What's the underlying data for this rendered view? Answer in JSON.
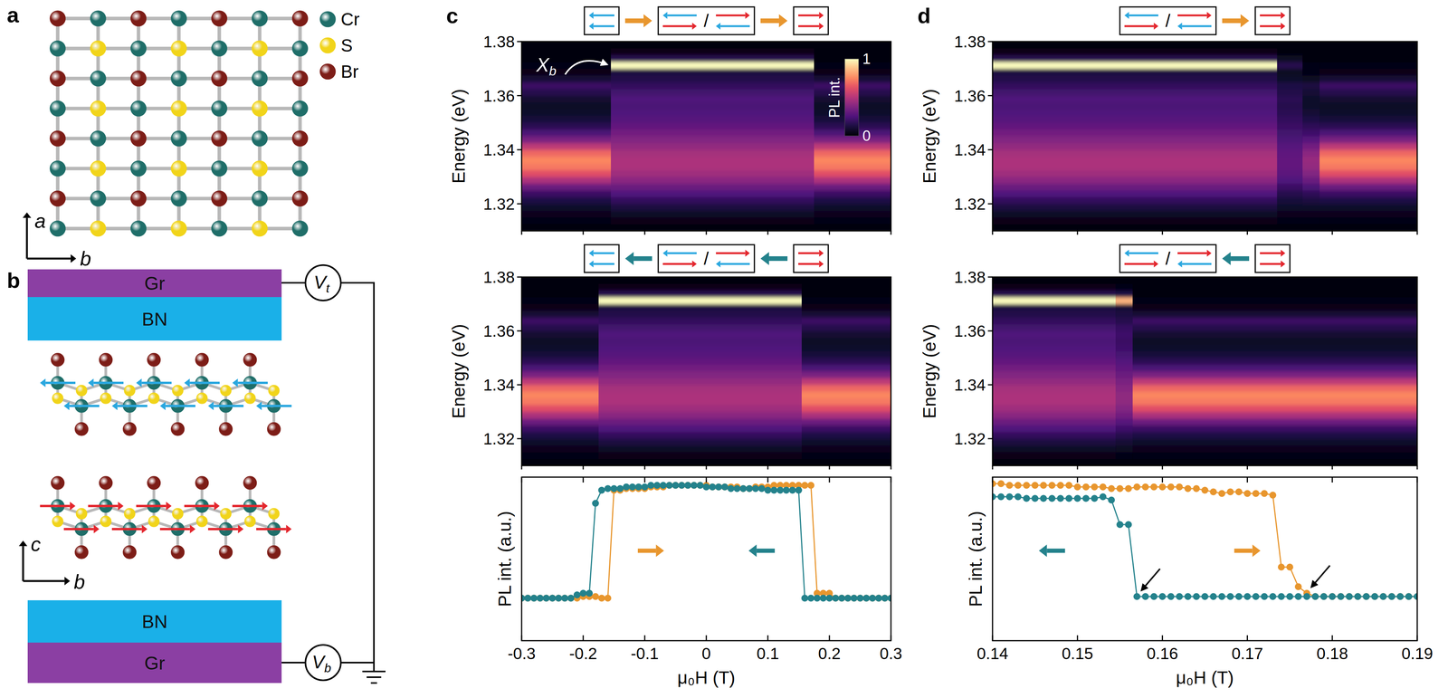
{
  "panel_letters": [
    "a",
    "b",
    "c",
    "d"
  ],
  "lattice": {
    "elements": [
      "Cr",
      "S",
      "Br"
    ],
    "colors": [
      "#1f6e69",
      "#f1d41a",
      "#7d1d17"
    ],
    "axes": [
      "a",
      "b"
    ]
  },
  "device": {
    "top": [
      "Gr",
      "BN"
    ],
    "bottom": [
      "BN",
      "Gr"
    ],
    "gates": [
      {
        "symbol": "V",
        "sub": "t"
      },
      {
        "symbol": "V",
        "sub": "b"
      }
    ],
    "axes": [
      "c",
      "b"
    ]
  },
  "state_separator": "/",
  "chart_data": [
    {
      "type": "heatmap",
      "ylabel": "Energy (eV)",
      "x_edges": [
        -0.3,
        -0.155,
        0.175,
        0.3
      ],
      "y_edges": [
        1.31,
        1.3125,
        1.315,
        1.3175,
        1.32,
        1.3225,
        1.325,
        1.3275,
        1.33,
        1.3325,
        1.335,
        1.3375,
        1.34,
        1.3425,
        1.345,
        1.3475,
        1.35,
        1.3525,
        1.355,
        1.3575,
        1.36,
        1.3625,
        1.365,
        1.3675,
        1.37,
        1.3725,
        1.375,
        1.3775,
        1.38
      ],
      "cells": [
        [
          0.02,
          0.03,
          0.05,
          0.08,
          0.13,
          0.2,
          0.32,
          0.48,
          0.62,
          0.72,
          0.75,
          0.68,
          0.52,
          0.36,
          0.24,
          0.16,
          0.11,
          0.08,
          0.07,
          0.09,
          0.15,
          0.2,
          0.1,
          0.04,
          0.03,
          0.02,
          0.01,
          0.01
        ],
        [
          0.02,
          0.04,
          0.07,
          0.12,
          0.18,
          0.25,
          0.32,
          0.4,
          0.45,
          0.48,
          0.48,
          0.46,
          0.42,
          0.38,
          0.34,
          0.3,
          0.27,
          0.25,
          0.24,
          0.25,
          0.22,
          0.18,
          0.14,
          0.12,
          1.0,
          0.15,
          0.04,
          0.02
        ],
        [
          0.02,
          0.03,
          0.05,
          0.08,
          0.13,
          0.2,
          0.32,
          0.48,
          0.62,
          0.72,
          0.75,
          0.68,
          0.52,
          0.36,
          0.24,
          0.16,
          0.11,
          0.08,
          0.07,
          0.09,
          0.15,
          0.2,
          0.1,
          0.04,
          0.03,
          0.02,
          0.01,
          0.01
        ]
      ],
      "xlim": [
        -0.3,
        0.3
      ],
      "ylim": [
        1.31,
        1.38
      ],
      "xticks": [
        -0.3,
        -0.2,
        -0.1,
        0,
        0.1,
        0.2,
        0.3
      ],
      "yticks": [
        1.32,
        1.34,
        1.36,
        1.38
      ],
      "tick_labels": "y",
      "color_range": [
        0,
        1
      ],
      "color_ticks": [
        0,
        1
      ],
      "colorbar_label": "PL int.",
      "annotation": {
        "text": "X",
        "sub": "b"
      }
    },
    {
      "type": "heatmap",
      "ylabel": "Energy (eV)",
      "x_edges": [
        -0.3,
        -0.175,
        0.155,
        0.3
      ],
      "y_edges": [
        1.31,
        1.3125,
        1.315,
        1.3175,
        1.32,
        1.3225,
        1.325,
        1.3275,
        1.33,
        1.3325,
        1.335,
        1.3375,
        1.34,
        1.3425,
        1.345,
        1.3475,
        1.35,
        1.3525,
        1.355,
        1.3575,
        1.36,
        1.3625,
        1.365,
        1.3675,
        1.37,
        1.3725,
        1.375,
        1.3775,
        1.38
      ],
      "cells": [
        [
          0.02,
          0.03,
          0.05,
          0.08,
          0.13,
          0.2,
          0.32,
          0.48,
          0.62,
          0.72,
          0.75,
          0.68,
          0.52,
          0.36,
          0.24,
          0.16,
          0.11,
          0.08,
          0.07,
          0.09,
          0.15,
          0.2,
          0.1,
          0.04,
          0.03,
          0.02,
          0.01,
          0.01
        ],
        [
          0.02,
          0.04,
          0.07,
          0.12,
          0.18,
          0.25,
          0.32,
          0.4,
          0.45,
          0.48,
          0.48,
          0.46,
          0.42,
          0.38,
          0.34,
          0.3,
          0.27,
          0.25,
          0.24,
          0.25,
          0.22,
          0.18,
          0.14,
          0.12,
          1.0,
          0.15,
          0.04,
          0.02
        ],
        [
          0.02,
          0.03,
          0.05,
          0.08,
          0.13,
          0.2,
          0.32,
          0.48,
          0.62,
          0.72,
          0.75,
          0.68,
          0.52,
          0.36,
          0.24,
          0.16,
          0.11,
          0.08,
          0.07,
          0.09,
          0.15,
          0.2,
          0.1,
          0.04,
          0.03,
          0.02,
          0.01,
          0.01
        ]
      ],
      "xlim": [
        -0.3,
        0.3
      ],
      "ylim": [
        1.31,
        1.38
      ],
      "xticks": [
        -0.3,
        -0.2,
        -0.1,
        0,
        0.1,
        0.2,
        0.3
      ],
      "yticks": [
        1.32,
        1.34,
        1.36,
        1.38
      ],
      "tick_labels": "y",
      "color_range": [
        0,
        1
      ]
    },
    {
      "type": "line",
      "ylabel": "PL int. (a.u.)",
      "xlabel": "μ₀H (T)",
      "x": [
        -0.3,
        -0.29,
        -0.28,
        -0.27,
        -0.26,
        -0.25,
        -0.24,
        -0.23,
        -0.22,
        -0.21,
        -0.2,
        -0.19,
        -0.18,
        -0.17,
        -0.16,
        -0.15,
        -0.14,
        -0.13,
        -0.12,
        -0.11,
        -0.1,
        -0.09,
        -0.08,
        -0.07,
        -0.06,
        -0.05,
        -0.04,
        -0.03,
        -0.02,
        -0.01,
        0,
        0.01,
        0.02,
        0.03,
        0.04,
        0.05,
        0.06,
        0.07,
        0.08,
        0.09,
        0.1,
        0.11,
        0.12,
        0.13,
        0.14,
        0.15,
        0.16,
        0.17,
        0.18,
        0.19,
        0.2,
        0.21,
        0.22,
        0.23,
        0.24,
        0.25,
        0.26,
        0.27,
        0.28,
        0.29,
        0.3
      ],
      "xlim": [
        -0.3,
        0.3
      ],
      "ylim": [
        0,
        1
      ],
      "xticks": [
        -0.3,
        -0.2,
        -0.1,
        0,
        0.1,
        0.2,
        0.3
      ],
      "tick_labels": "x",
      "series": [
        {
          "color": "#e8962e",
          "marker": "circle",
          "values": [
            0.26,
            0.26,
            0.26,
            0.26,
            0.26,
            0.26,
            0.26,
            0.26,
            0.26,
            0.26,
            0.27,
            0.27,
            0.27,
            0.26,
            0.26,
            0.92,
            0.92,
            0.93,
            0.93,
            0.93,
            0.93,
            0.94,
            0.94,
            0.94,
            0.95,
            0.95,
            0.95,
            0.95,
            0.95,
            0.95,
            0.95,
            0.94,
            0.94,
            0.94,
            0.94,
            0.94,
            0.93,
            0.93,
            0.94,
            0.94,
            0.94,
            0.95,
            0.95,
            0.95,
            0.95,
            0.95,
            0.95,
            0.95,
            0.29,
            0.29,
            0.29,
            0.26,
            0.26,
            0.26,
            0.26,
            0.26,
            0.26,
            0.26,
            0.26,
            0.26,
            0.26
          ]
        },
        {
          "color": "#24828c",
          "marker": "circle",
          "values": [
            0.26,
            0.26,
            0.26,
            0.26,
            0.26,
            0.26,
            0.26,
            0.26,
            0.26,
            0.28,
            0.29,
            0.29,
            0.84,
            0.92,
            0.93,
            0.93,
            0.93,
            0.94,
            0.94,
            0.94,
            0.94,
            0.95,
            0.95,
            0.95,
            0.95,
            0.95,
            0.95,
            0.95,
            0.95,
            0.95,
            0.94,
            0.94,
            0.94,
            0.94,
            0.93,
            0.93,
            0.93,
            0.93,
            0.93,
            0.93,
            0.92,
            0.92,
            0.92,
            0.92,
            0.92,
            0.92,
            0.26,
            0.26,
            0.26,
            0.26,
            0.26,
            0.26,
            0.26,
            0.26,
            0.26,
            0.26,
            0.26,
            0.26,
            0.26,
            0.26,
            0.26
          ]
        }
      ]
    },
    {
      "type": "heatmap",
      "ylabel": "Energy (eV)",
      "x_edges": [
        0.14,
        0.1735,
        0.1765,
        0.1785,
        0.19
      ],
      "y_edges": [
        1.31,
        1.3125,
        1.315,
        1.3175,
        1.32,
        1.3225,
        1.325,
        1.3275,
        1.33,
        1.3325,
        1.335,
        1.3375,
        1.34,
        1.3425,
        1.345,
        1.3475,
        1.35,
        1.3525,
        1.355,
        1.3575,
        1.36,
        1.3625,
        1.365,
        1.3675,
        1.37,
        1.3725,
        1.375,
        1.3775,
        1.38
      ],
      "cells": [
        [
          0.02,
          0.04,
          0.07,
          0.12,
          0.18,
          0.25,
          0.32,
          0.4,
          0.45,
          0.48,
          0.48,
          0.46,
          0.42,
          0.38,
          0.34,
          0.3,
          0.27,
          0.25,
          0.24,
          0.25,
          0.22,
          0.18,
          0.14,
          0.12,
          1.0,
          0.15,
          0.04,
          0.02
        ],
        [
          0.02,
          0.03,
          0.05,
          0.08,
          0.11,
          0.15,
          0.2,
          0.25,
          0.28,
          0.3,
          0.3,
          0.29,
          0.27,
          0.24,
          0.22,
          0.2,
          0.18,
          0.16,
          0.15,
          0.16,
          0.14,
          0.13,
          0.08,
          0.06,
          0.15,
          0.06,
          0.02,
          0.01
        ],
        [
          0.02,
          0.03,
          0.05,
          0.08,
          0.12,
          0.17,
          0.24,
          0.32,
          0.38,
          0.42,
          0.43,
          0.4,
          0.34,
          0.27,
          0.21,
          0.17,
          0.13,
          0.1,
          0.08,
          0.08,
          0.1,
          0.12,
          0.06,
          0.03,
          0.03,
          0.02,
          0.01,
          0.01
        ],
        [
          0.02,
          0.03,
          0.05,
          0.08,
          0.13,
          0.2,
          0.32,
          0.48,
          0.62,
          0.72,
          0.75,
          0.68,
          0.52,
          0.36,
          0.24,
          0.16,
          0.11,
          0.08,
          0.07,
          0.09,
          0.15,
          0.2,
          0.1,
          0.04,
          0.03,
          0.02,
          0.01,
          0.01
        ]
      ],
      "xlim": [
        0.14,
        0.19
      ],
      "ylim": [
        1.31,
        1.38
      ],
      "xticks": [
        0.14,
        0.15,
        0.16,
        0.17,
        0.18,
        0.19
      ],
      "yticks": [
        1.32,
        1.34,
        1.36,
        1.38
      ],
      "tick_labels": "y",
      "color_range": [
        0,
        1
      ]
    },
    {
      "type": "heatmap",
      "ylabel": "Energy (eV)",
      "x_edges": [
        0.14,
        0.1545,
        0.1565,
        0.19
      ],
      "y_edges": [
        1.31,
        1.3125,
        1.315,
        1.3175,
        1.32,
        1.3225,
        1.325,
        1.3275,
        1.33,
        1.3325,
        1.335,
        1.3375,
        1.34,
        1.3425,
        1.345,
        1.3475,
        1.35,
        1.3525,
        1.355,
        1.3575,
        1.36,
        1.3625,
        1.365,
        1.3675,
        1.37,
        1.3725,
        1.375,
        1.3775,
        1.38
      ],
      "cells": [
        [
          0.02,
          0.04,
          0.07,
          0.12,
          0.18,
          0.25,
          0.32,
          0.4,
          0.45,
          0.48,
          0.48,
          0.46,
          0.42,
          0.38,
          0.34,
          0.3,
          0.27,
          0.25,
          0.24,
          0.25,
          0.22,
          0.18,
          0.14,
          0.12,
          1.0,
          0.15,
          0.04,
          0.02
        ],
        [
          0.02,
          0.03,
          0.06,
          0.1,
          0.15,
          0.21,
          0.27,
          0.34,
          0.38,
          0.41,
          0.41,
          0.39,
          0.36,
          0.32,
          0.29,
          0.26,
          0.23,
          0.21,
          0.2,
          0.21,
          0.19,
          0.15,
          0.12,
          0.1,
          0.85,
          0.13,
          0.03,
          0.02
        ],
        [
          0.02,
          0.03,
          0.05,
          0.08,
          0.13,
          0.2,
          0.32,
          0.48,
          0.62,
          0.72,
          0.75,
          0.68,
          0.52,
          0.36,
          0.24,
          0.16,
          0.11,
          0.08,
          0.07,
          0.09,
          0.15,
          0.2,
          0.1,
          0.04,
          0.03,
          0.02,
          0.01,
          0.01
        ]
      ],
      "xlim": [
        0.14,
        0.19
      ],
      "ylim": [
        1.31,
        1.38
      ],
      "xticks": [
        0.14,
        0.15,
        0.16,
        0.17,
        0.18,
        0.19
      ],
      "yticks": [
        1.32,
        1.34,
        1.36,
        1.38
      ],
      "tick_labels": "y",
      "color_range": [
        0,
        1
      ]
    },
    {
      "type": "line",
      "ylabel": "PL int. (a.u.)",
      "xlabel": "μ₀H (T)",
      "x": [
        0.14,
        0.141,
        0.142,
        0.143,
        0.144,
        0.145,
        0.146,
        0.147,
        0.148,
        0.149,
        0.15,
        0.151,
        0.152,
        0.153,
        0.154,
        0.155,
        0.156,
        0.157,
        0.158,
        0.159,
        0.16,
        0.161,
        0.162,
        0.163,
        0.164,
        0.165,
        0.166,
        0.167,
        0.168,
        0.169,
        0.17,
        0.171,
        0.172,
        0.173,
        0.174,
        0.175,
        0.176,
        0.177,
        0.178,
        0.179,
        0.18,
        0.181,
        0.182,
        0.183,
        0.184,
        0.185,
        0.186,
        0.187,
        0.188,
        0.189,
        0.19
      ],
      "xlim": [
        0.14,
        0.19
      ],
      "ylim": [
        0,
        1
      ],
      "xticks": [
        0.14,
        0.15,
        0.16,
        0.17,
        0.18,
        0.19
      ],
      "tick_labels": "x",
      "series": [
        {
          "color": "#e8962e",
          "marker": "circle",
          "values": [
            0.96,
            0.96,
            0.95,
            0.95,
            0.95,
            0.95,
            0.95,
            0.95,
            0.95,
            0.95,
            0.94,
            0.94,
            0.94,
            0.94,
            0.93,
            0.93,
            0.93,
            0.94,
            0.94,
            0.94,
            0.94,
            0.94,
            0.94,
            0.93,
            0.93,
            0.92,
            0.91,
            0.9,
            0.91,
            0.91,
            0.9,
            0.9,
            0.9,
            0.89,
            0.45,
            0.45,
            0.33,
            0.29,
            0.27,
            0.27,
            0.27,
            0.27,
            0.27,
            0.27,
            0.27,
            0.27,
            0.27,
            0.27,
            0.27,
            0.27,
            0.27
          ]
        },
        {
          "color": "#24828c",
          "marker": "circle",
          "values": [
            0.88,
            0.88,
            0.88,
            0.88,
            0.87,
            0.87,
            0.87,
            0.87,
            0.87,
            0.87,
            0.87,
            0.87,
            0.87,
            0.88,
            0.86,
            0.71,
            0.71,
            0.27,
            0.27,
            0.27,
            0.27,
            0.27,
            0.27,
            0.27,
            0.27,
            0.27,
            0.27,
            0.27,
            0.27,
            0.27,
            0.27,
            0.27,
            0.27,
            0.27,
            0.27,
            0.27,
            0.27,
            0.27,
            0.27,
            0.27,
            0.27,
            0.27,
            0.27,
            0.27,
            0.27,
            0.27,
            0.27,
            0.27,
            0.27,
            0.27,
            0.27
          ]
        }
      ]
    }
  ]
}
